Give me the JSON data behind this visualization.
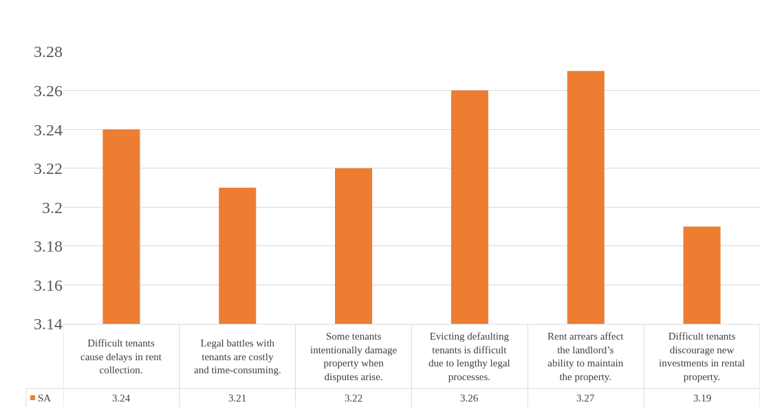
{
  "chart_data": {
    "type": "bar",
    "categories": [
      "Difficult tenants cause delays in rent collection.",
      "Legal battles with tenants are costly and time-consuming.",
      "Some tenants intentionally damage property when disputes arise.",
      "Evicting defaulting tenants is difficult due to lengthy legal processes.",
      "Rent arrears affect the landlord’s ability to maintain the property.",
      "Difficult tenants discourage new investments in rental property."
    ],
    "series": [
      {
        "name": "SA",
        "color": "#ed7d31",
        "values": [
          3.24,
          3.21,
          3.22,
          3.26,
          3.27,
          3.19
        ]
      }
    ],
    "ylim": [
      3.14,
      3.28
    ],
    "yticks": [
      3.14,
      3.16,
      3.18,
      3.2,
      3.22,
      3.24,
      3.26,
      3.28
    ],
    "grid": "y",
    "legend": "bottom left",
    "data_labels": true
  }
}
